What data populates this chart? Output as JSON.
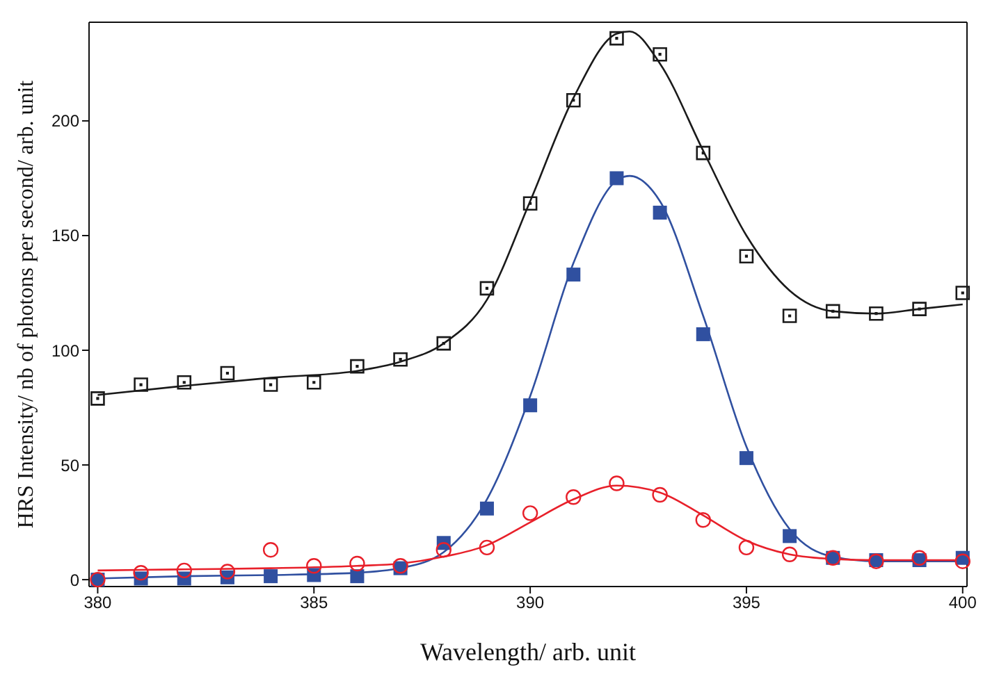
{
  "chart_data": {
    "type": "scatter",
    "xlabel": "Wavelength/ arb. unit",
    "ylabel": "HRS Intensity/ nb of photons per second/ arb. unit",
    "xlim": [
      379.8,
      400.1
    ],
    "ylim": [
      -3,
      243
    ],
    "xticks": [
      380,
      385,
      390,
      395,
      400
    ],
    "yticks": [
      0,
      50,
      100,
      150,
      200
    ],
    "grid": false,
    "legend": false,
    "series": [
      {
        "marker": "square",
        "color": "#1a1a1a",
        "x": [
          380,
          381,
          382,
          383,
          384,
          385,
          386,
          387,
          388,
          389,
          390,
          391,
          392,
          393,
          394,
          395,
          396,
          397,
          398,
          399,
          400
        ],
        "values": [
          79,
          85,
          86,
          90,
          85,
          86,
          93,
          96,
          103,
          127,
          164,
          209,
          236,
          229,
          186,
          141,
          115,
          117,
          116,
          118,
          125
        ]
      },
      {
        "marker": "square",
        "color": "#3050a0",
        "x": [
          380,
          381,
          382,
          383,
          384,
          385,
          386,
          387,
          388,
          389,
          390,
          391,
          392,
          393,
          394,
          395,
          396,
          397,
          398,
          399,
          400
        ],
        "values": [
          0,
          0.5,
          0.5,
          1,
          1.5,
          2,
          1.5,
          5,
          16,
          31,
          76,
          133,
          175,
          160,
          107,
          53,
          19,
          9.5,
          8.5,
          8.5,
          9.5
        ]
      },
      {
        "marker": "circle",
        "color": "#e8202a",
        "x": [
          380,
          381,
          382,
          383,
          384,
          385,
          386,
          387,
          388,
          389,
          390,
          391,
          392,
          393,
          394,
          395,
          396,
          397,
          398,
          399,
          400
        ],
        "values": [
          0,
          3,
          4,
          3.5,
          13,
          6,
          7,
          6,
          13,
          14,
          29,
          36,
          42,
          37,
          26,
          14,
          11,
          9.5,
          8,
          9.5,
          8
        ]
      },
      {
        "type": "line",
        "marker": "none",
        "color": "#1a1a1a",
        "x": [
          380,
          382,
          384,
          386,
          387,
          388,
          389,
          390,
          391,
          392,
          392.3,
          393,
          394,
          395,
          396,
          397,
          398,
          399,
          400
        ],
        "values": [
          80.5,
          84.5,
          88,
          91,
          95,
          103,
          122,
          165,
          210,
          238,
          239,
          225,
          187,
          150,
          126,
          117,
          116,
          118,
          120
        ]
      },
      {
        "type": "line",
        "marker": "none",
        "color": "#3050a0",
        "x": [
          380,
          382,
          384,
          386,
          387,
          388,
          389,
          390,
          391,
          392,
          392.3,
          393,
          394,
          395,
          396,
          397,
          398,
          399,
          400
        ],
        "values": [
          0.5,
          1.5,
          2,
          3,
          5,
          12,
          35,
          80,
          138,
          174,
          176,
          165,
          115,
          58,
          22,
          10,
          8,
          8,
          8
        ]
      },
      {
        "type": "line",
        "marker": "none",
        "color": "#e8202a",
        "x": [
          380,
          382,
          384,
          386,
          387,
          388,
          389,
          390,
          391,
          392,
          393,
          394,
          395,
          396,
          397,
          398,
          400
        ],
        "values": [
          4,
          4.5,
          5,
          6,
          7,
          10,
          15,
          25,
          35,
          41,
          38,
          28,
          17,
          11,
          9,
          8.5,
          8.5
        ]
      }
    ]
  }
}
